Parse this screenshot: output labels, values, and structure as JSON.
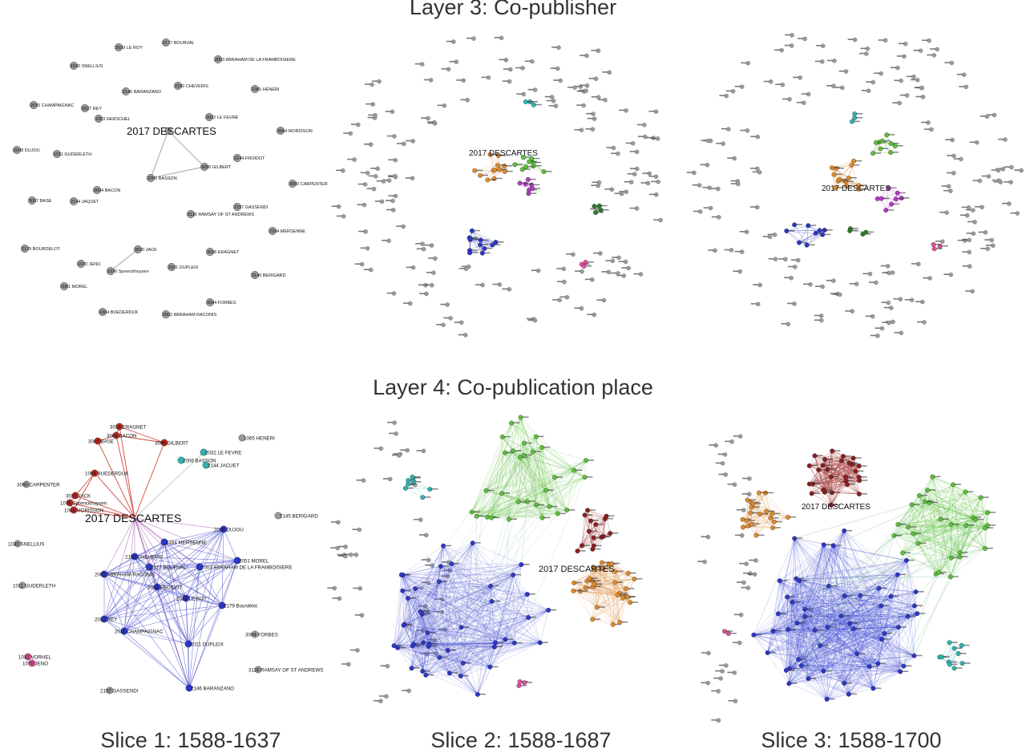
{
  "titles": {
    "layer3": "Layer 3: Co-publisher",
    "layer4": "Layer 4: Co-publication place"
  },
  "slices": [
    "Slice 1: 1588-1637",
    "Slice 2: 1588-1687",
    "Slice 3: 1588-1700"
  ],
  "focus_label": "2017 DESCARTES",
  "colors": {
    "gray": "#9a9a9a",
    "blue": "#2b35c8",
    "red": "#c0271f",
    "green": "#5cbf3a",
    "orange": "#e08a2a",
    "purple": "#b23ac2",
    "teal": "#2fb3ad",
    "darkgreen": "#2d7a2d",
    "pink": "#e0509a",
    "darkred": "#8a1f1f"
  },
  "panels": [
    {
      "id": "l3s1",
      "nodes": [
        {
          "label": "2017 DESCARTES",
          "color": "gray"
        },
        {
          "label": "2039 LE ROY",
          "color": "gray"
        },
        {
          "label": "2177 BOURVAL",
          "color": "gray"
        },
        {
          "label": "1030 SNELLIUS",
          "color": "gray"
        },
        {
          "label": "2003 ABRAHAM DE LA FRAMBOISIERE",
          "color": "gray"
        },
        {
          "label": "2146 BARANZANO",
          "color": "gray"
        },
        {
          "label": "2150 CHEVERIS",
          "color": "gray"
        },
        {
          "label": "1065 HENERI",
          "color": "gray"
        },
        {
          "label": "2015 CHAMPAIGNAC",
          "color": "gray"
        },
        {
          "label": "2027 REY",
          "color": "gray"
        },
        {
          "label": "2032 LE FEVRE",
          "color": "gray"
        },
        {
          "label": "1053 HERSCHEL",
          "color": "gray"
        },
        {
          "label": "3064 MORISSON",
          "color": "gray"
        },
        {
          "label": "2008 DUJOU",
          "color": "gray"
        },
        {
          "label": "1011 GUDERLETH",
          "color": "gray"
        },
        {
          "label": "2006 BASSON",
          "color": "gray"
        },
        {
          "label": "3096 GILBERT",
          "color": "gray"
        },
        {
          "label": "2144 FROIDOT",
          "color": "gray"
        },
        {
          "label": "3004 BACON",
          "color": "gray"
        },
        {
          "label": "3007 BASE",
          "color": "gray"
        },
        {
          "label": "3060 CARPENTER",
          "color": "gray"
        },
        {
          "label": "2144 JAQUET",
          "color": "gray"
        },
        {
          "label": "2157 GASSENDI",
          "color": "gray"
        },
        {
          "label": "3116 RAMSAY OF ST ANDREWS",
          "color": "gray"
        },
        {
          "label": "2164 MERSENNE",
          "color": "gray"
        },
        {
          "label": "3020 JACK",
          "color": "gray"
        },
        {
          "label": "1070 JENO",
          "color": "gray"
        },
        {
          "label": "2179 BOURDELOT",
          "color": "gray"
        },
        {
          "label": "3018 ERAGNET",
          "color": "gray"
        },
        {
          "label": "1076 Sprenckhuysen",
          "color": "gray"
        },
        {
          "label": "2021 DUPLEIX",
          "color": "gray"
        },
        {
          "label": "2149 BERIGARD",
          "color": "gray"
        },
        {
          "label": "2051 MOREL",
          "color": "gray"
        },
        {
          "label": "3094 FORBES",
          "color": "gray"
        },
        {
          "label": "1004 BUEDERDUK",
          "color": "gray"
        },
        {
          "label": "2002 ABRAHAM RACONIS",
          "color": "gray"
        }
      ],
      "edges": [
        [
          0,
          15
        ],
        [
          0,
          16
        ],
        [
          15,
          16
        ],
        [
          25,
          29
        ]
      ]
    },
    {
      "id": "l4s1",
      "nodes": [
        {
          "label": "2017 DESCARTES",
          "color": "gray"
        },
        {
          "label": "3018 ERAGNET",
          "color": "red"
        },
        {
          "label": "3004 BACON",
          "color": "red"
        },
        {
          "label": "3007 BASE",
          "color": "red"
        },
        {
          "label": "3096 GILBERT",
          "color": "red"
        },
        {
          "label": "1004 BUEDERDUK",
          "color": "red"
        },
        {
          "label": "3020 JACK",
          "color": "red"
        },
        {
          "label": "1076 Sprenckhuysen",
          "color": "red"
        },
        {
          "label": "1064 MORISSON",
          "color": "red"
        },
        {
          "label": "2032 LE FEVRE",
          "color": "teal"
        },
        {
          "label": "2006 BASSON",
          "color": "teal"
        },
        {
          "label": "2144 JACUET",
          "color": "teal"
        },
        {
          "label": "1065 HENERI",
          "color": "gray"
        },
        {
          "label": "3060 CARPENTER",
          "color": "gray"
        },
        {
          "label": "2145 BERIGARD",
          "color": "gray"
        },
        {
          "label": "1030 SNELLIUS",
          "color": "gray"
        },
        {
          "label": "2008 DUJOU",
          "color": "blue"
        },
        {
          "label": "2164 MERSENNE",
          "color": "blue"
        },
        {
          "label": "2150 CHEVERIS",
          "color": "blue"
        },
        {
          "label": "2177 BOURVAL",
          "color": "blue"
        },
        {
          "label": "2003 ABRAHAM DE LA FRAMBOISIERE",
          "color": "blue"
        },
        {
          "label": "2051 MOREL",
          "color": "blue"
        },
        {
          "label": "2002 ABRAHAM RACONIS",
          "color": "blue"
        },
        {
          "label": "2014 FROIDOT",
          "color": "blue"
        },
        {
          "label": "2033 LE ROY",
          "color": "blue"
        },
        {
          "label": "2179 Bourdelot",
          "color": "blue"
        },
        {
          "label": "1011 GUDERLETH",
          "color": "gray"
        },
        {
          "label": "2027 REY",
          "color": "blue"
        },
        {
          "label": "2011 CHAMPAIGNAC",
          "color": "blue"
        },
        {
          "label": "2021 DUPLEIX",
          "color": "blue"
        },
        {
          "label": "3094 FORBES",
          "color": "gray"
        },
        {
          "label": "1032 VORHEL",
          "color": "pink"
        },
        {
          "label": "1070 JENO",
          "color": "pink"
        },
        {
          "label": "3116 RAMSAY OF ST ANDREWS",
          "color": "gray"
        },
        {
          "label": "2146 BARANZANO",
          "color": "blue"
        },
        {
          "label": "2157 GASSENDI",
          "color": "gray"
        }
      ]
    }
  ]
}
